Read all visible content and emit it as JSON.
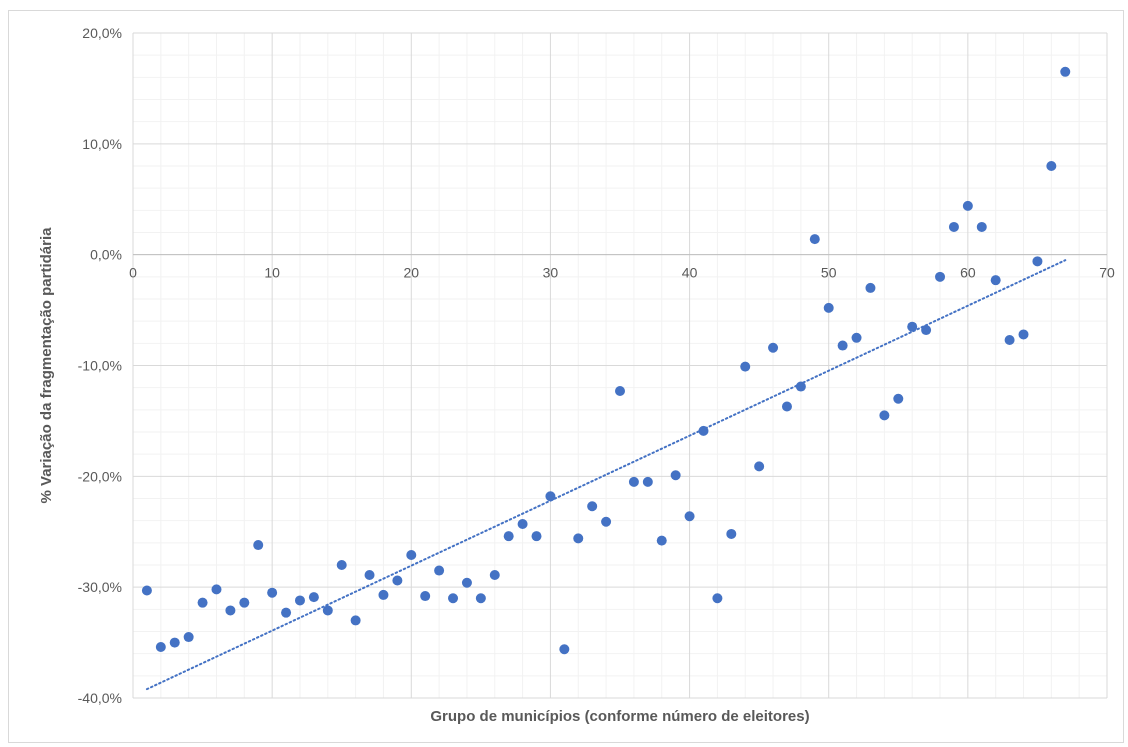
{
  "chart_data": {
    "type": "scatter",
    "title": "",
    "xlabel": "Grupo de municípios (conforme número de eleitores)",
    "ylabel": "% Variação da fragmentação partidária",
    "xlim": [
      0,
      70
    ],
    "ylim": [
      -40,
      20
    ],
    "x_major_ticks": [
      0,
      10,
      20,
      30,
      40,
      50,
      60,
      70
    ],
    "x_tick_labels": [
      "0",
      "10",
      "20",
      "30",
      "40",
      "50",
      "60",
      "70"
    ],
    "y_major_ticks": [
      -40,
      -30,
      -20,
      -10,
      0,
      10,
      20
    ],
    "y_tick_labels": [
      "-40,0%",
      "-30,0%",
      "-20,0%",
      "-10,0%",
      "0,0%",
      "10,0%",
      "20,0%"
    ],
    "x_minor_step": 2,
    "y_minor_step": 2,
    "grid": true,
    "legend": "none",
    "colors": {
      "points": "#4472c4",
      "trendline": "#4472c4",
      "major_grid": "#d9d9d9",
      "minor_grid": "#f2f2f2",
      "axis_text": "#595959"
    },
    "trendline": {
      "type": "linear",
      "style": "dotted",
      "x": [
        1,
        67
      ],
      "y": [
        -39.2,
        -0.5
      ]
    },
    "series": [
      {
        "points": [
          [
            1,
            -30.3
          ],
          [
            2,
            -35.4
          ],
          [
            3,
            -35.0
          ],
          [
            4,
            -34.5
          ],
          [
            5,
            -31.4
          ],
          [
            6,
            -30.2
          ],
          [
            7,
            -32.1
          ],
          [
            8,
            -31.4
          ],
          [
            9,
            -26.2
          ],
          [
            10,
            -30.5
          ],
          [
            11,
            -32.3
          ],
          [
            12,
            -31.2
          ],
          [
            13,
            -30.9
          ],
          [
            14,
            -32.1
          ],
          [
            15,
            -28.0
          ],
          [
            16,
            -33.0
          ],
          [
            17,
            -28.9
          ],
          [
            18,
            -30.7
          ],
          [
            19,
            -29.4
          ],
          [
            20,
            -27.1
          ],
          [
            21,
            -30.8
          ],
          [
            22,
            -28.5
          ],
          [
            23,
            -31.0
          ],
          [
            24,
            -29.6
          ],
          [
            25,
            -31.0
          ],
          [
            26,
            -28.9
          ],
          [
            27,
            -25.4
          ],
          [
            28,
            -24.3
          ],
          [
            29,
            -25.4
          ],
          [
            30,
            -21.8
          ],
          [
            31,
            -35.6
          ],
          [
            32,
            -25.6
          ],
          [
            33,
            -22.7
          ],
          [
            34,
            -24.1
          ],
          [
            35,
            -12.3
          ],
          [
            36,
            -20.5
          ],
          [
            37,
            -20.5
          ],
          [
            38,
            -25.8
          ],
          [
            39,
            -19.9
          ],
          [
            40,
            -23.6
          ],
          [
            41,
            -15.9
          ],
          [
            42,
            -31.0
          ],
          [
            43,
            -25.2
          ],
          [
            44,
            -10.1
          ],
          [
            45,
            -19.1
          ],
          [
            46,
            -8.4
          ],
          [
            47,
            -13.7
          ],
          [
            48,
            -11.9
          ],
          [
            49,
            1.4
          ],
          [
            50,
            -4.8
          ],
          [
            51,
            -8.2
          ],
          [
            52,
            -7.5
          ],
          [
            53,
            -3.0
          ],
          [
            54,
            -14.5
          ],
          [
            55,
            -13.0
          ],
          [
            56,
            -6.5
          ],
          [
            57,
            -6.8
          ],
          [
            58,
            -2.0
          ],
          [
            59,
            2.5
          ],
          [
            60,
            4.4
          ],
          [
            61,
            2.5
          ],
          [
            62,
            -2.3
          ],
          [
            63,
            -7.7
          ],
          [
            64,
            -7.2
          ],
          [
            65,
            -0.6
          ],
          [
            66,
            8.0
          ],
          [
            67,
            16.5
          ]
        ]
      }
    ]
  }
}
